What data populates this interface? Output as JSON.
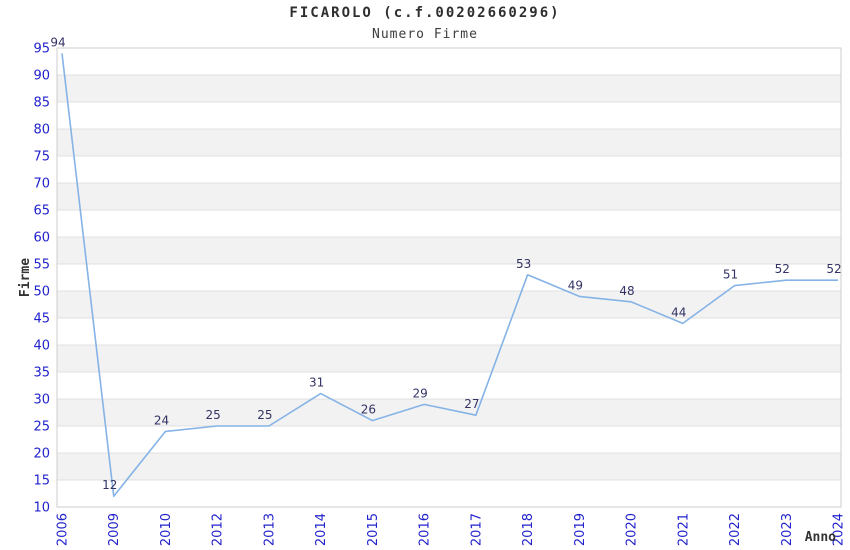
{
  "chart_data": {
    "type": "line",
    "title": "FICAROLO (c.f.00202660296)",
    "subtitle": "Numero Firme",
    "xlabel": "Anno",
    "ylabel": "Firme",
    "categories": [
      "2006",
      "2009",
      "2010",
      "2012",
      "2013",
      "2014",
      "2015",
      "2016",
      "2017",
      "2018",
      "2019",
      "2020",
      "2021",
      "2022",
      "2023",
      "2024"
    ],
    "values": [
      94,
      12,
      24,
      25,
      25,
      31,
      26,
      29,
      27,
      53,
      49,
      48,
      44,
      51,
      52,
      52
    ],
    "ylim": [
      10,
      95
    ],
    "yticks": [
      10,
      15,
      20,
      25,
      30,
      35,
      40,
      45,
      50,
      55,
      60,
      65,
      70,
      75,
      80,
      85,
      90,
      95
    ],
    "grid": "horizontal-gridlines-with-alternating-bands",
    "legend": "none",
    "markers": "none",
    "colors": {
      "line": "#85b3e6",
      "tick_label": "#2222cc",
      "point_label": "#333366",
      "band_fill": "#f2f2f2",
      "gridline": "#e0e0e0",
      "plot_border": "#cccccc",
      "axis_title_text": "#333333",
      "background": "#ffffff"
    }
  }
}
